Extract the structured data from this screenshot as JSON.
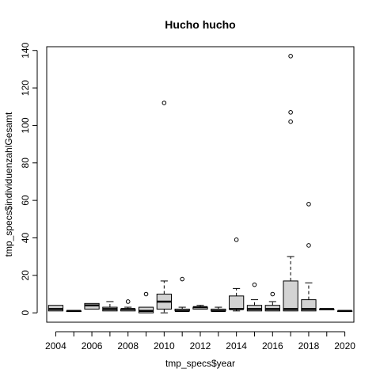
{
  "chart_data": {
    "type": "boxplot",
    "title": "Hucho hucho",
    "xlabel": "tmp_specs$year",
    "ylabel": "tmp_specs$individuenzahlGesamt",
    "ylim": [
      -5,
      142
    ],
    "yticks": [
      0,
      20,
      40,
      60,
      80,
      100,
      120,
      140
    ],
    "xtick_labels": [
      "2004",
      "2006",
      "2008",
      "2010",
      "2012",
      "2014",
      "2016",
      "2018",
      "2020"
    ],
    "colors": {
      "box_fill": "#d3d3d3",
      "stroke": "#000000"
    },
    "categories": [
      "2004",
      "2005",
      "2006",
      "2007",
      "2008",
      "2009",
      "2010",
      "2011",
      "2012",
      "2013",
      "2014",
      "2015",
      "2016",
      "2017",
      "2018",
      "2019",
      "2020"
    ],
    "boxes": [
      {
        "year": "2004",
        "min": 1,
        "q1": 1,
        "median": 2,
        "q3": 4,
        "max": 4,
        "outliers": []
      },
      {
        "year": "2005",
        "min": 1,
        "q1": 1,
        "median": 1,
        "q3": 1,
        "max": 1,
        "outliers": []
      },
      {
        "year": "2006",
        "min": 2,
        "q1": 2,
        "median": 4,
        "q3": 5,
        "max": 5,
        "outliers": []
      },
      {
        "year": "2007",
        "min": 1,
        "q1": 1,
        "median": 2,
        "q3": 3,
        "max": 6,
        "outliers": []
      },
      {
        "year": "2008",
        "min": 1,
        "q1": 1,
        "median": 2,
        "q3": 2,
        "max": 3,
        "outliers": [
          6
        ]
      },
      {
        "year": "2009",
        "min": 0,
        "q1": 0,
        "median": 1,
        "q3": 3,
        "max": 3,
        "outliers": [
          10
        ]
      },
      {
        "year": "2010",
        "min": 0,
        "q1": 2,
        "median": 6,
        "q3": 10,
        "max": 17,
        "outliers": [
          112
        ]
      },
      {
        "year": "2011",
        "min": 1,
        "q1": 1,
        "median": 1,
        "q3": 2,
        "max": 3,
        "outliers": [
          18
        ]
      },
      {
        "year": "2012",
        "min": 2,
        "q1": 2,
        "median": 3,
        "q3": 3,
        "max": 4,
        "outliers": []
      },
      {
        "year": "2013",
        "min": 1,
        "q1": 1,
        "median": 1,
        "q3": 2,
        "max": 3,
        "outliers": []
      },
      {
        "year": "2014",
        "min": 1,
        "q1": 2,
        "median": 2,
        "q3": 9,
        "max": 13,
        "outliers": [
          39
        ]
      },
      {
        "year": "2015",
        "min": 1,
        "q1": 1,
        "median": 2,
        "q3": 4,
        "max": 7,
        "outliers": [
          15
        ]
      },
      {
        "year": "2016",
        "min": 1,
        "q1": 1,
        "median": 2,
        "q3": 4,
        "max": 6,
        "outliers": [
          10
        ]
      },
      {
        "year": "2017",
        "min": 1,
        "q1": 1,
        "median": 2,
        "q3": 17,
        "max": 30,
        "outliers": [
          102,
          107,
          137
        ]
      },
      {
        "year": "2018",
        "min": 1,
        "q1": 1,
        "median": 2,
        "q3": 7,
        "max": 16,
        "outliers": [
          36,
          58
        ]
      },
      {
        "year": "2019",
        "min": 2,
        "q1": 2,
        "median": 2,
        "q3": 2,
        "max": 2,
        "outliers": []
      },
      {
        "year": "2020",
        "min": 1,
        "q1": 1,
        "median": 1,
        "q3": 1,
        "max": 1,
        "outliers": []
      }
    ]
  }
}
